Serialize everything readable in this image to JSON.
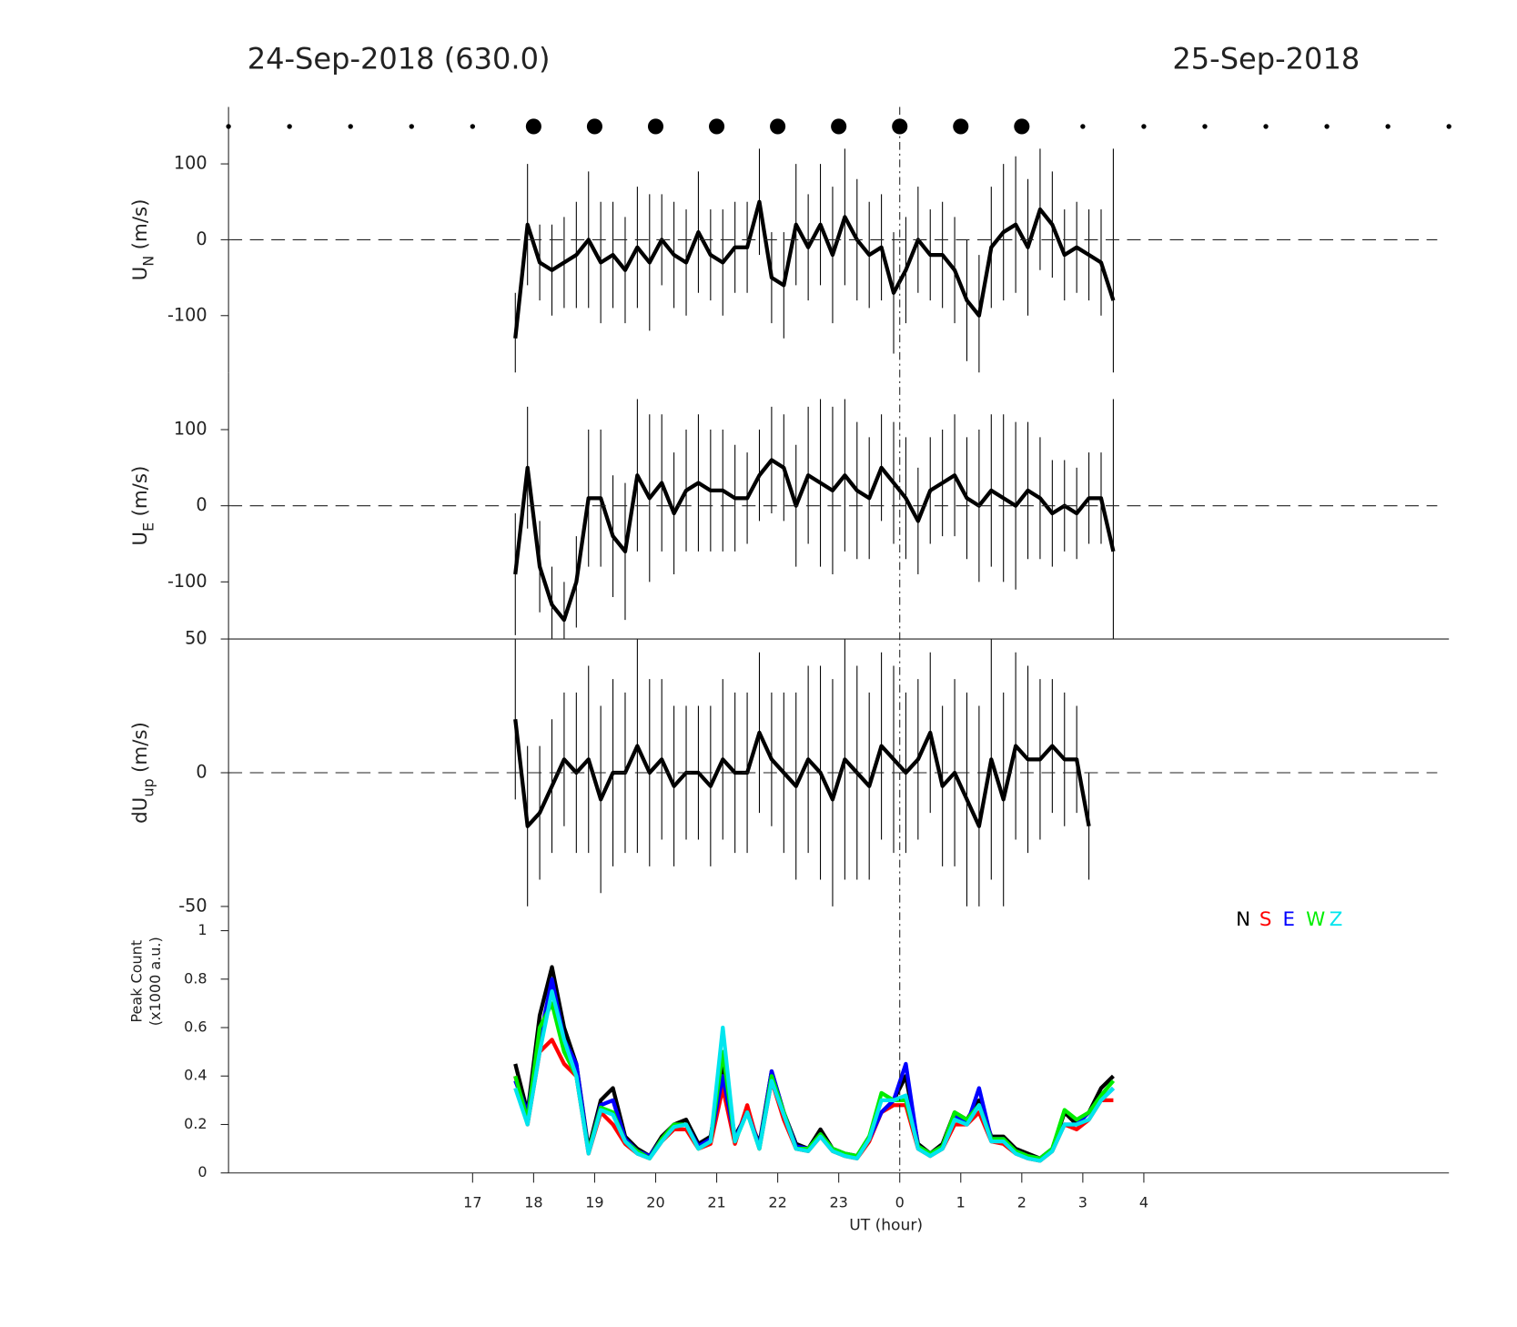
{
  "figure": {
    "title_left": "24-Sep-2018 (630.0)",
    "title_right": "25-Sep-2018",
    "vline_x": 24,
    "dots": {
      "large_x": [
        18,
        19,
        20,
        21,
        22,
        23,
        24,
        25,
        26
      ],
      "small_x": [
        13,
        14,
        15,
        16,
        17,
        27,
        28,
        29,
        30,
        31,
        32,
        33
      ]
    }
  },
  "chart_data": [
    {
      "type": "line",
      "ylabel": {
        "main": "U",
        "sub": "N",
        "unit": "(m/s)"
      },
      "xlim": [
        13,
        33
      ],
      "ylim": [
        -175,
        175
      ],
      "yticks": [
        -100,
        0,
        100
      ],
      "hline": 0,
      "color": "#000000",
      "x": [
        17.7,
        17.9,
        18.1,
        18.3,
        18.5,
        18.7,
        18.9,
        19.1,
        19.3,
        19.5,
        19.7,
        19.9,
        20.1,
        20.3,
        20.5,
        20.7,
        20.9,
        21.1,
        21.3,
        21.5,
        21.7,
        21.9,
        22.1,
        22.3,
        22.5,
        22.7,
        22.9,
        23.1,
        23.3,
        23.5,
        23.7,
        23.9,
        24.1,
        24.3,
        24.5,
        24.7,
        24.9,
        25.1,
        25.3,
        25.5,
        25.7,
        25.9,
        26.1,
        26.3,
        26.5,
        26.7,
        26.9,
        27.1,
        27.3,
        27.5
      ],
      "values": [
        -130,
        20,
        -30,
        -40,
        -30,
        -20,
        0,
        -30,
        -20,
        -40,
        -10,
        -30,
        0,
        -20,
        -30,
        10,
        -20,
        -30,
        -10,
        -10,
        50,
        -50,
        -60,
        20,
        -10,
        20,
        -20,
        30,
        0,
        -20,
        -10,
        -70,
        -40,
        0,
        -20,
        -20,
        -40,
        -80,
        -100,
        -10,
        10,
        20,
        -10,
        40,
        20,
        -20,
        -10,
        -20,
        -30,
        -80
      ],
      "errors": [
        60,
        80,
        50,
        60,
        60,
        70,
        90,
        80,
        70,
        70,
        80,
        90,
        60,
        70,
        70,
        80,
        60,
        70,
        60,
        60,
        70,
        60,
        70,
        80,
        70,
        80,
        90,
        90,
        80,
        70,
        70,
        80,
        70,
        70,
        60,
        70,
        70,
        80,
        80,
        80,
        90,
        90,
        90,
        80,
        70,
        60,
        60,
        60,
        70,
        200
      ]
    },
    {
      "type": "line",
      "ylabel": {
        "main": "U",
        "sub": "E",
        "unit": "(m/s)"
      },
      "xlim": [
        13,
        33
      ],
      "ylim": [
        -175,
        175
      ],
      "yticks": [
        -100,
        0,
        100
      ],
      "hline": 0,
      "color": "#000000",
      "x": [
        17.7,
        17.9,
        18.1,
        18.3,
        18.5,
        18.7,
        18.9,
        19.1,
        19.3,
        19.5,
        19.7,
        19.9,
        20.1,
        20.3,
        20.5,
        20.7,
        20.9,
        21.1,
        21.3,
        21.5,
        21.7,
        21.9,
        22.1,
        22.3,
        22.5,
        22.7,
        22.9,
        23.1,
        23.3,
        23.5,
        23.7,
        23.9,
        24.1,
        24.3,
        24.5,
        24.7,
        24.9,
        25.1,
        25.3,
        25.5,
        25.7,
        25.9,
        26.1,
        26.3,
        26.5,
        26.7,
        26.9,
        27.1,
        27.3,
        27.5
      ],
      "values": [
        -90,
        50,
        -80,
        -130,
        -150,
        -100,
        10,
        10,
        -40,
        -60,
        40,
        10,
        30,
        -10,
        20,
        30,
        20,
        20,
        10,
        10,
        40,
        60,
        50,
        0,
        40,
        30,
        20,
        40,
        20,
        10,
        50,
        30,
        10,
        -20,
        20,
        30,
        40,
        10,
        0,
        20,
        10,
        0,
        20,
        10,
        -10,
        0,
        -10,
        10,
        10,
        -60
      ],
      "errors": [
        80,
        80,
        60,
        50,
        50,
        60,
        90,
        90,
        80,
        90,
        100,
        110,
        90,
        80,
        80,
        90,
        80,
        80,
        70,
        60,
        60,
        70,
        70,
        80,
        90,
        110,
        110,
        100,
        90,
        80,
        70,
        80,
        80,
        70,
        70,
        70,
        80,
        80,
        100,
        100,
        110,
        110,
        90,
        80,
        70,
        60,
        60,
        60,
        60,
        200
      ]
    },
    {
      "type": "line",
      "ylabel": {
        "main": "dU",
        "sub": "up",
        "unit": "(m/s)"
      },
      "xlim": [
        13,
        33
      ],
      "ylim": [
        -50,
        50
      ],
      "yticks": [
        -50,
        0,
        50
      ],
      "hline": 0,
      "color": "#000000",
      "x": [
        17.7,
        17.9,
        18.1,
        18.3,
        18.5,
        18.7,
        18.9,
        19.1,
        19.3,
        19.5,
        19.7,
        19.9,
        20.1,
        20.3,
        20.5,
        20.7,
        20.9,
        21.1,
        21.3,
        21.5,
        21.7,
        21.9,
        22.1,
        22.3,
        22.5,
        22.7,
        22.9,
        23.1,
        23.3,
        23.5,
        23.7,
        23.9,
        24.1,
        24.3,
        24.5,
        24.7,
        24.9,
        25.1,
        25.3,
        25.5,
        25.7,
        25.9,
        26.1,
        26.3,
        26.5,
        26.7,
        26.9,
        27.1,
        27.3,
        27.5
      ],
      "values": [
        20,
        -20,
        -15,
        -5,
        5,
        0,
        5,
        -10,
        0,
        0,
        10,
        0,
        5,
        -5,
        0,
        0,
        -5,
        5,
        0,
        0,
        15,
        5,
        0,
        -5,
        5,
        0,
        -10,
        5,
        0,
        -5,
        10,
        5,
        0,
        5,
        15,
        -5,
        0,
        -10,
        -20,
        5,
        -10,
        10,
        5,
        5,
        10,
        5,
        5,
        -20,
        null,
        null
      ],
      "errors": [
        30,
        30,
        25,
        25,
        25,
        30,
        35,
        35,
        35,
        30,
        40,
        35,
        30,
        30,
        25,
        25,
        30,
        30,
        30,
        30,
        30,
        25,
        30,
        35,
        35,
        40,
        45,
        45,
        40,
        35,
        35,
        35,
        30,
        30,
        30,
        30,
        35,
        40,
        45,
        45,
        40,
        35,
        35,
        30,
        25,
        25,
        20,
        20,
        null,
        null
      ]
    },
    {
      "type": "multiline",
      "ylabel": {
        "line1": "Peak Count",
        "line2": "(x1000 a.u.)"
      },
      "xlabel": "UT (hour)",
      "xlim": [
        13,
        33
      ],
      "ylim": [
        0,
        1.1
      ],
      "yticks": [
        0,
        0.2,
        0.4,
        0.6,
        0.8,
        1
      ],
      "xticks": [
        17,
        18,
        19,
        20,
        21,
        22,
        23,
        {
          "value": 24,
          "label": "0"
        },
        {
          "value": 25,
          "label": "1"
        },
        {
          "value": 26,
          "label": "2"
        },
        {
          "value": 27,
          "label": "3"
        },
        {
          "value": 28,
          "label": "4"
        }
      ],
      "legend": "upper right",
      "x": [
        17.7,
        17.9,
        18.1,
        18.3,
        18.5,
        18.7,
        18.9,
        19.1,
        19.3,
        19.5,
        19.7,
        19.9,
        20.1,
        20.3,
        20.5,
        20.7,
        20.9,
        21.1,
        21.3,
        21.5,
        21.7,
        21.9,
        22.1,
        22.3,
        22.5,
        22.7,
        22.9,
        23.1,
        23.3,
        23.5,
        23.7,
        23.9,
        24.1,
        24.3,
        24.5,
        24.7,
        24.9,
        25.1,
        25.3,
        25.5,
        25.7,
        25.9,
        26.1,
        26.3,
        26.5,
        26.7,
        26.9,
        27.1,
        27.3,
        27.5
      ],
      "series": [
        {
          "name": "N",
          "color": "#000000",
          "values": [
            0.45,
            0.25,
            0.65,
            0.85,
            0.6,
            0.45,
            0.1,
            0.3,
            0.35,
            0.15,
            0.1,
            0.07,
            0.15,
            0.2,
            0.22,
            0.12,
            0.15,
            0.45,
            0.15,
            0.25,
            0.12,
            0.42,
            0.25,
            0.12,
            0.1,
            0.18,
            0.1,
            0.08,
            0.07,
            0.15,
            0.25,
            0.3,
            0.4,
            0.12,
            0.08,
            0.12,
            0.25,
            0.22,
            0.3,
            0.15,
            0.15,
            0.1,
            0.08,
            0.06,
            0.1,
            0.25,
            0.2,
            0.25,
            0.35,
            0.4
          ]
        },
        {
          "name": "S",
          "color": "#ff0000",
          "values": [
            0.4,
            0.2,
            0.5,
            0.55,
            0.45,
            0.4,
            0.08,
            0.25,
            0.2,
            0.12,
            0.08,
            0.06,
            0.13,
            0.18,
            0.18,
            0.1,
            0.12,
            0.35,
            0.12,
            0.28,
            0.1,
            0.38,
            0.22,
            0.1,
            0.09,
            0.15,
            0.09,
            0.07,
            0.06,
            0.13,
            0.25,
            0.28,
            0.28,
            0.1,
            0.07,
            0.1,
            0.2,
            0.2,
            0.25,
            0.13,
            0.12,
            0.08,
            0.06,
            0.05,
            0.09,
            0.2,
            0.18,
            0.22,
            0.3,
            0.3
          ]
        },
        {
          "name": "E",
          "color": "#0000ff",
          "values": [
            0.38,
            0.25,
            0.55,
            0.8,
            0.55,
            0.45,
            0.09,
            0.28,
            0.3,
            0.14,
            0.09,
            0.07,
            0.14,
            0.2,
            0.2,
            0.11,
            0.14,
            0.4,
            0.14,
            0.25,
            0.11,
            0.42,
            0.25,
            0.11,
            0.1,
            0.16,
            0.1,
            0.08,
            0.07,
            0.14,
            0.25,
            0.3,
            0.45,
            0.11,
            0.08,
            0.11,
            0.24,
            0.2,
            0.35,
            0.14,
            0.14,
            0.09,
            0.07,
            0.06,
            0.1,
            0.2,
            0.2,
            0.25,
            0.3,
            0.35
          ]
        },
        {
          "name": "W",
          "color": "#00ee00",
          "values": [
            0.4,
            0.22,
            0.6,
            0.7,
            0.5,
            0.4,
            0.09,
            0.27,
            0.25,
            0.13,
            0.09,
            0.06,
            0.14,
            0.2,
            0.2,
            0.1,
            0.13,
            0.5,
            0.13,
            0.25,
            0.1,
            0.4,
            0.25,
            0.1,
            0.1,
            0.16,
            0.1,
            0.08,
            0.07,
            0.15,
            0.33,
            0.3,
            0.3,
            0.11,
            0.08,
            0.11,
            0.25,
            0.22,
            0.28,
            0.14,
            0.14,
            0.09,
            0.07,
            0.06,
            0.1,
            0.26,
            0.22,
            0.25,
            0.32,
            0.38
          ]
        },
        {
          "name": "Z",
          "color": "#00e5ee",
          "values": [
            0.35,
            0.2,
            0.5,
            0.75,
            0.55,
            0.4,
            0.08,
            0.26,
            0.24,
            0.13,
            0.08,
            0.06,
            0.13,
            0.19,
            0.2,
            0.1,
            0.13,
            0.6,
            0.13,
            0.25,
            0.1,
            0.38,
            0.24,
            0.1,
            0.09,
            0.15,
            0.09,
            0.07,
            0.06,
            0.14,
            0.3,
            0.3,
            0.32,
            0.1,
            0.07,
            0.1,
            0.22,
            0.2,
            0.28,
            0.13,
            0.13,
            0.08,
            0.06,
            0.05,
            0.09,
            0.2,
            0.2,
            0.22,
            0.3,
            0.35
          ]
        }
      ]
    }
  ]
}
